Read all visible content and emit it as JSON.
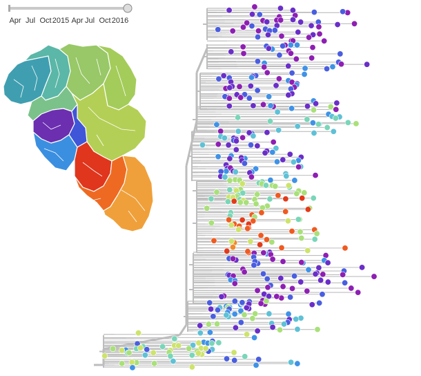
{
  "timeline": {
    "ticks": [
      {
        "label": "Apr"
      },
      {
        "label": "Jul"
      },
      {
        "label": "Oct"
      },
      {
        "label": "2015"
      },
      {
        "label": "Apr"
      },
      {
        "label": "Jul"
      },
      {
        "label": "Oct"
      },
      {
        "label": "2016"
      }
    ],
    "slider_position": 1.0
  },
  "colors": {
    "branch": "#bdbdbd",
    "palette": [
      "#8e1fb3",
      "#6a2ec8",
      "#4a5ee0",
      "#3f92e6",
      "#5ec1d6",
      "#79d6b8",
      "#a9e07a",
      "#cde36c",
      "#f08a2a",
      "#f05a20",
      "#e33a1a"
    ]
  },
  "map": {
    "regions": [
      {
        "id": "north-west",
        "color": "#3f9fb0"
      },
      {
        "id": "west",
        "color": "#5bb7a7"
      },
      {
        "id": "center-west",
        "color": "#7bc28a"
      },
      {
        "id": "north",
        "color": "#98c867"
      },
      {
        "id": "north-east",
        "color": "#a4cc5a"
      },
      {
        "id": "east",
        "color": "#b4cf55"
      },
      {
        "id": "coast",
        "color": "#6b2fb0"
      },
      {
        "id": "south-west",
        "color": "#3f56d9"
      },
      {
        "id": "south-coast",
        "color": "#3b8fe0"
      },
      {
        "id": "south-center",
        "color": "#e0361d"
      },
      {
        "id": "south-east",
        "color": "#ee6a22"
      },
      {
        "id": "far-south-east",
        "color": "#f0a03a"
      }
    ]
  }
}
